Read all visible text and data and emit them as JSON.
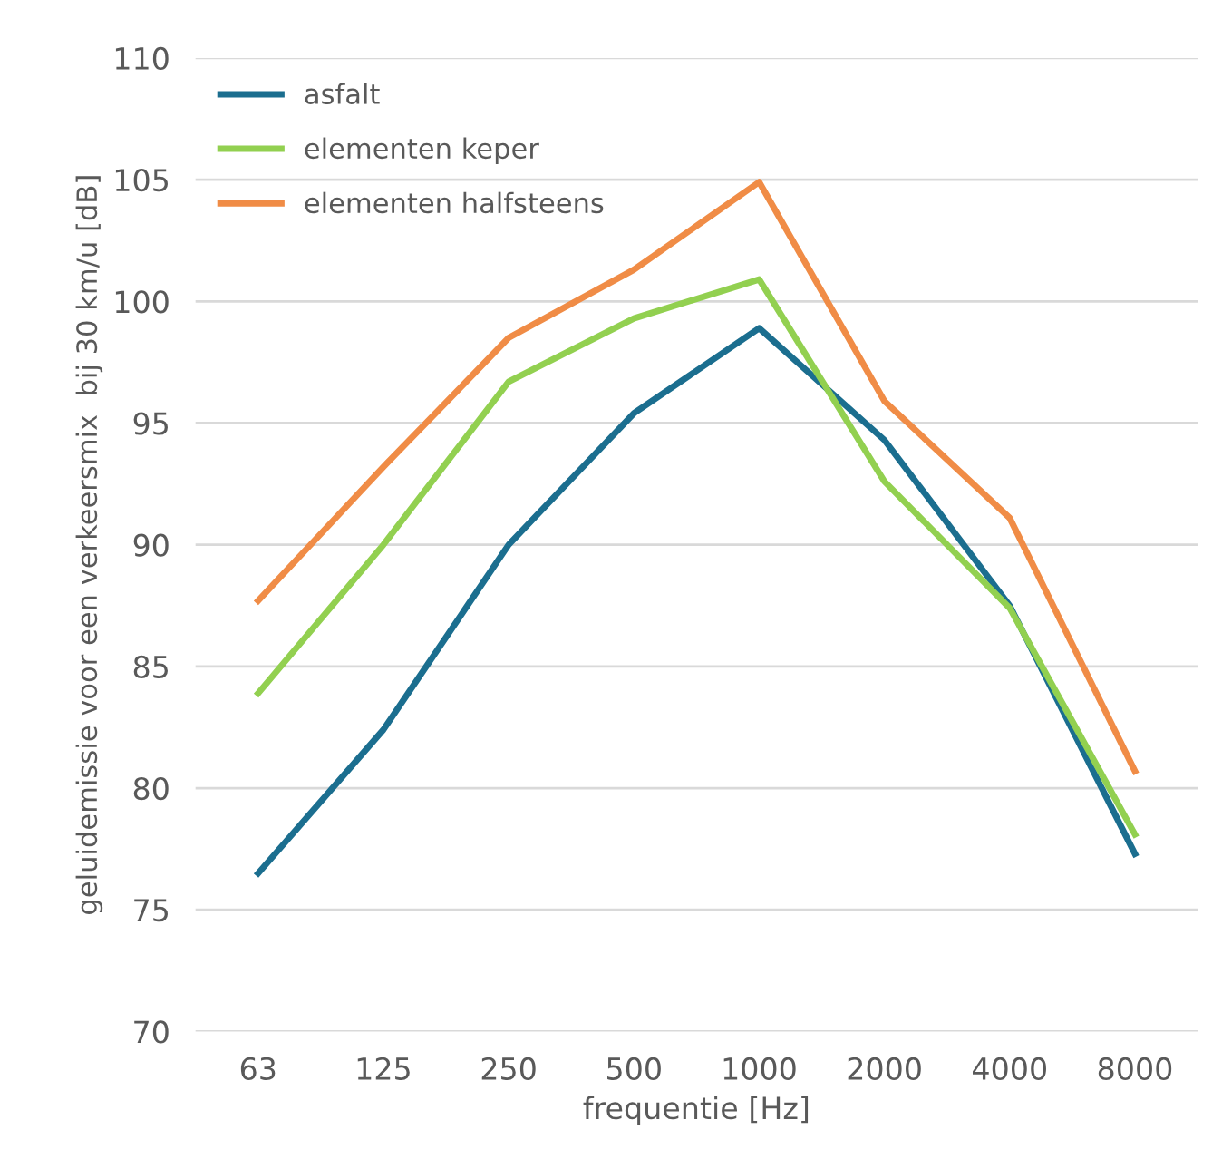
{
  "chart_data": {
    "type": "line",
    "xlabel": "frequentie [Hz]",
    "ylabel": "geluidemissie voor een verkeersmix  bij 30 km/u [dB]",
    "categories": [
      "63",
      "125",
      "250",
      "500",
      "1000",
      "2000",
      "4000",
      "8000"
    ],
    "series": [
      {
        "name": "asfalt",
        "color": "#1b6e8f",
        "values": [
          76.5,
          82.4,
          90.0,
          95.4,
          98.9,
          94.3,
          87.5,
          77.3
        ]
      },
      {
        "name": "elementen keper",
        "color": "#92d050",
        "values": [
          83.9,
          90.0,
          96.7,
          99.3,
          100.9,
          92.6,
          87.4,
          78.1
        ]
      },
      {
        "name": "elementen halfsteens",
        "color": "#f08c46",
        "values": [
          87.7,
          93.2,
          98.5,
          101.3,
          104.9,
          95.9,
          91.1,
          80.7
        ]
      }
    ],
    "ylim": [
      70,
      110
    ],
    "yticks": [
      70,
      75,
      80,
      85,
      90,
      95,
      100,
      105,
      110
    ],
    "grid": "y",
    "legend": "top left",
    "marker": "none",
    "line_style": "solid"
  }
}
